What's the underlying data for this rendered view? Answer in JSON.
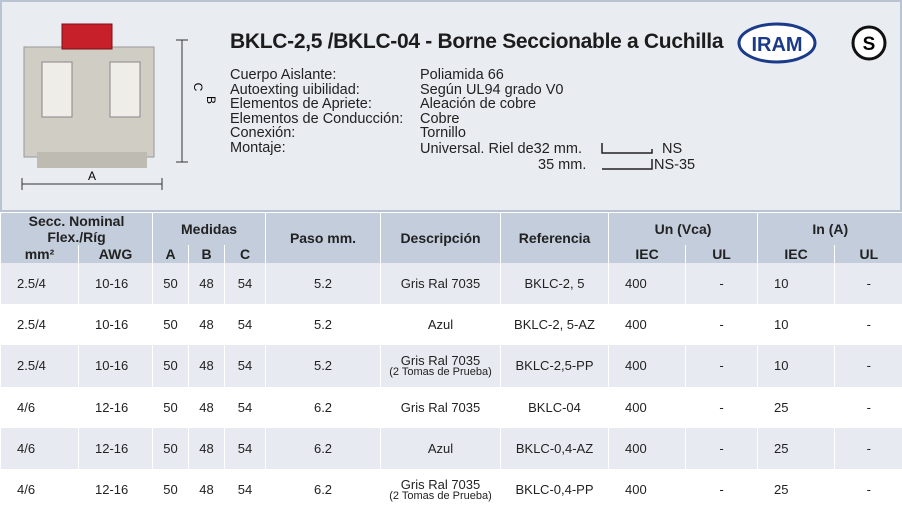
{
  "header": {
    "title": "BKLC-2,5 /BKLC-04 - Borne Seccionable  a Cuchilla",
    "logos": [
      "IRAM",
      "S"
    ],
    "dimensions": [
      "A",
      "B",
      "C"
    ],
    "specs": [
      {
        "label": "Cuerpo Aislante:",
        "value": "Poliamida 66"
      },
      {
        "label": "Autoexting uibilidad:",
        "value": "Según UL94 grado V0"
      },
      {
        "label": "Elementos de Apriete:",
        "value": "Aleación de cobre"
      },
      {
        "label": "Elementos de Conducción:",
        "value": "Cobre"
      },
      {
        "label": "Conexión:",
        "value": "Tornillo"
      },
      {
        "label": "Montaje:",
        "value": "Universal. Riel de32 mm."
      }
    ],
    "rails": [
      {
        "size": "",
        "name": "NS"
      },
      {
        "size": "35 mm.",
        "name": "NS-35"
      }
    ]
  },
  "table": {
    "header_top": [
      "Secc. Nominal Flex./Ríg",
      "Medidas",
      "Paso mm.",
      "Descripción",
      "Referencia",
      "Un (Vca)",
      "In (A)"
    ],
    "header_sub": [
      "mm²",
      "AWG",
      "A",
      "B",
      "C",
      "IEC",
      "UL",
      "IEC",
      "UL"
    ],
    "rows": [
      {
        "cells": [
          "2.5/4",
          "10-16",
          50,
          48,
          54,
          5.2,
          "Gris Ral 7035",
          "BKLC-2, 5",
          400,
          "-",
          10,
          "-"
        ]
      },
      {
        "cells": [
          "2.5/4",
          "10-16",
          50,
          48,
          54,
          5.2,
          "Azul",
          "BKLC-2, 5-AZ",
          400,
          "-",
          10,
          "-"
        ]
      },
      {
        "cells": [
          "2.5/4",
          "10-16",
          50,
          48,
          54,
          5.2,
          "Gris Ral 7035",
          "BKLC-2,5-PP",
          400,
          "-",
          10,
          "-"
        ],
        "note": "(2 Tomas de Prueba)"
      },
      {
        "cells": [
          "4/6",
          "12-16",
          50,
          48,
          54,
          6.2,
          "Gris Ral 7035",
          "BKLC-04",
          400,
          "-",
          25,
          "-"
        ]
      },
      {
        "cells": [
          "4/6",
          "12-16",
          50,
          48,
          54,
          6.2,
          "Azul",
          "BKLC-0,4-AZ",
          400,
          "-",
          25,
          "-"
        ]
      },
      {
        "cells": [
          "4/6",
          "12-16",
          50,
          48,
          54,
          6.2,
          "Gris Ral 7035",
          "BKLC-0,4-PP",
          400,
          "-",
          25,
          "-"
        ],
        "note": "(2 Tomas de Prueba)"
      }
    ]
  }
}
